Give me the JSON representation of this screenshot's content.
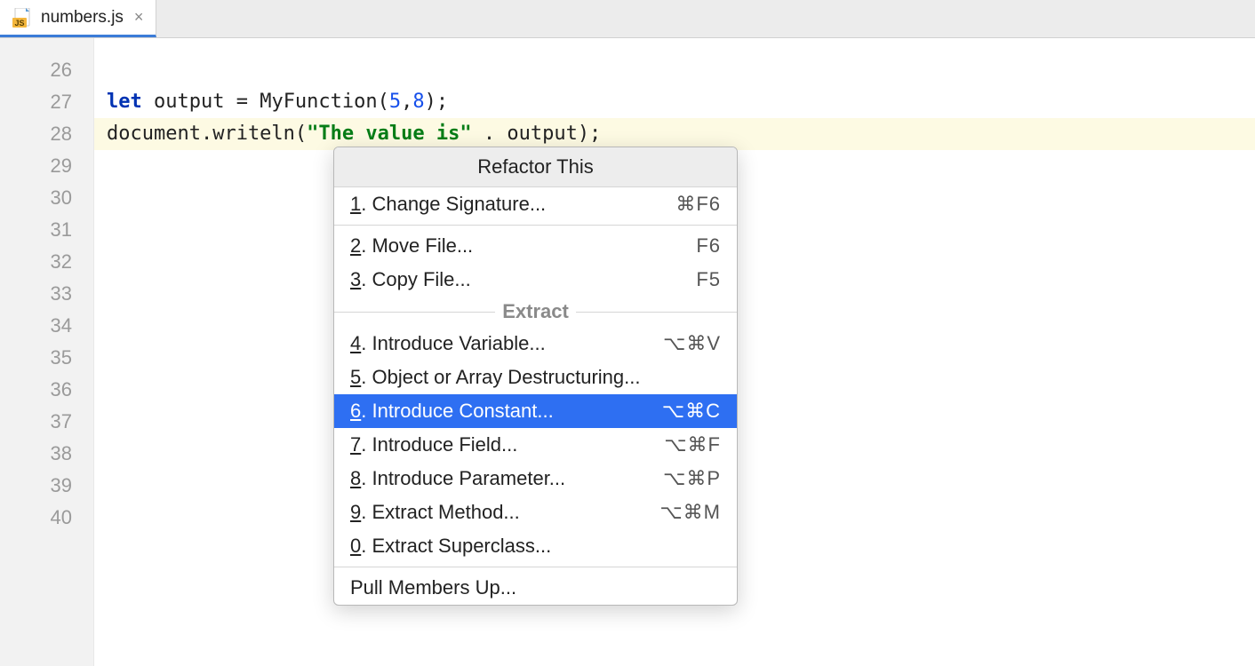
{
  "tab": {
    "filename": "numbers.js",
    "close_glyph": "×"
  },
  "gutter": {
    "start": 26,
    "end": 40,
    "highlighted": 28
  },
  "code": {
    "line27": {
      "kw": "let",
      "rest1": " output = MyFunction(",
      "n1": "5",
      "comma": ",",
      "n2": "8",
      "rest2": ");"
    },
    "line28": {
      "pre": "document.writeln(",
      "str": "\"The value is\"",
      "post": " . output);"
    }
  },
  "popup": {
    "title": "Refactor This",
    "group_label": "Extract",
    "items": [
      {
        "n": "1",
        "label": ". Change Signature...",
        "shortcut": "⌘F6"
      },
      {
        "n": "2",
        "label": ". Move File...",
        "shortcut": "F6"
      },
      {
        "n": "3",
        "label": ". Copy File...",
        "shortcut": "F5"
      },
      {
        "n": "4",
        "label": ". Introduce Variable...",
        "shortcut": "⌥⌘V"
      },
      {
        "n": "5",
        "label": ". Object or Array Destructuring...",
        "shortcut": ""
      },
      {
        "n": "6",
        "label": ". Introduce Constant...",
        "shortcut": "⌥⌘C"
      },
      {
        "n": "7",
        "label": ". Introduce Field...",
        "shortcut": "⌥⌘F"
      },
      {
        "n": "8",
        "label": ". Introduce Parameter...",
        "shortcut": "⌥⌘P"
      },
      {
        "n": "9",
        "label": ". Extract Method...",
        "shortcut": "⌥⌘M"
      },
      {
        "n": "0",
        "label": ". Extract Superclass...",
        "shortcut": ""
      }
    ],
    "last": {
      "label": "Pull Members Up..."
    },
    "selected_index": 5
  },
  "colors": {
    "tab_bg": "#ececec",
    "active_tab_border": "#3b7cd8",
    "gutter_bg": "#f2f2f2",
    "gutter_text": "#9a9a9a",
    "hl_line_bg": "#fdfae3",
    "keyword": "#0033b3",
    "number": "#1750eb",
    "string": "#067d17",
    "popup_selected": "#2e6ff2",
    "popup_border": "#b8b8b8"
  }
}
